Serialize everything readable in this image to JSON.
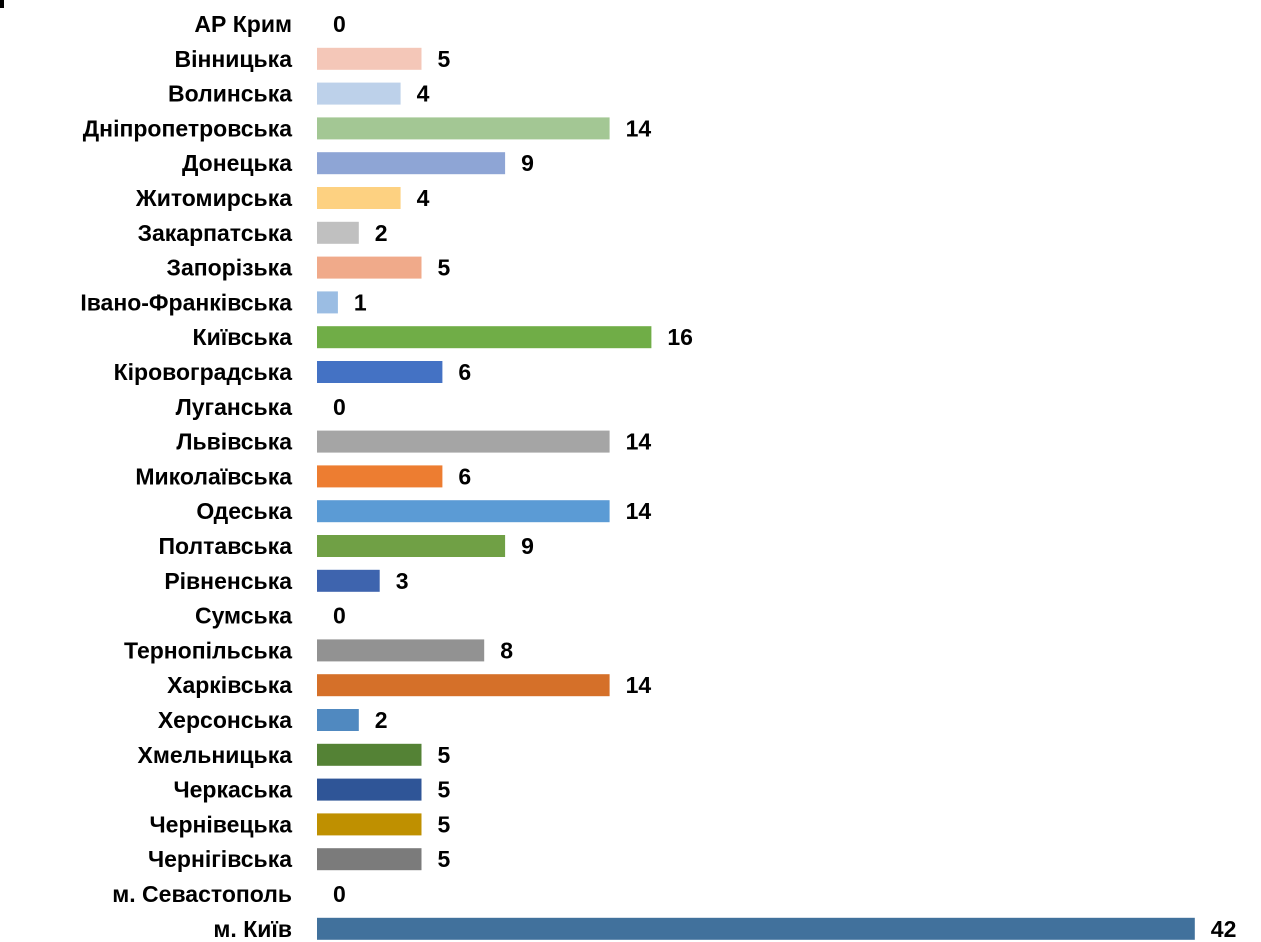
{
  "chart_data": {
    "type": "bar",
    "orientation": "horizontal",
    "title": "",
    "xlabel": "",
    "ylabel": "",
    "xlim": [
      0,
      42
    ],
    "grid": false,
    "legend": "none",
    "categories": [
      "АР Крим",
      "Вінницька",
      "Волинська",
      "Дніпропетровська",
      "Донецька",
      "Житомирська",
      "Закарпатська",
      "Запорізька",
      "Івано-Франківська",
      "Київська",
      "Кіровоградська",
      "Луганська",
      "Львівська",
      "Миколаївська",
      "Одеська",
      "Полтавська",
      "Рівненська",
      "Сумська",
      "Тернопільська",
      "Харківська",
      "Херсонська",
      "Хмельницька",
      "Черкаська",
      "Чернівецька",
      "Чернігівська",
      "м. Севастополь",
      "м. Київ"
    ],
    "values": [
      0,
      5,
      4,
      14,
      9,
      4,
      2,
      5,
      1,
      16,
      6,
      0,
      14,
      6,
      14,
      9,
      3,
      0,
      8,
      14,
      2,
      5,
      5,
      5,
      5,
      0,
      42
    ],
    "colors": [
      "#5b9bd5",
      "#f4c7b8",
      "#bdd1ea",
      "#a3c794",
      "#8ea5d5",
      "#fdd181",
      "#c0c0c0",
      "#f0aa8a",
      "#9bbde3",
      "#70ad47",
      "#4472c4",
      "#ffc000",
      "#a5a5a5",
      "#ed7d31",
      "#5b9bd5",
      "#70a045",
      "#3e64ae",
      "#a0a0a0",
      "#929292",
      "#d57029",
      "#5089c0",
      "#548235",
      "#2f5597",
      "#bf9000",
      "#7b7b7b",
      "#5b9bd5",
      "#41719c"
    ]
  }
}
